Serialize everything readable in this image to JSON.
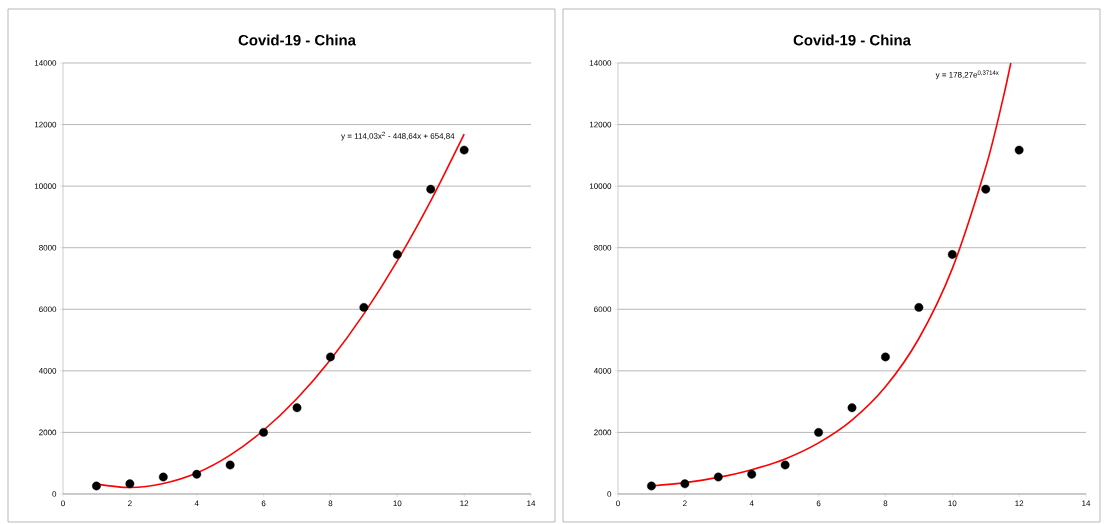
{
  "chart_data": [
    {
      "type": "scatter",
      "title": "Covid-19 - China",
      "xlim": [
        0,
        14
      ],
      "xticks": [
        0,
        2,
        4,
        6,
        8,
        10,
        12,
        14
      ],
      "ylim": [
        0,
        14000
      ],
      "yticks": [
        0,
        2000,
        4000,
        6000,
        8000,
        10000,
        12000,
        14000
      ],
      "grid": "y",
      "annotations": [
        "y = 114,03x$^{2}$ - 448,64x + 654,84"
      ],
      "series": [
        {
          "color": "#000000",
          "marker": "circle",
          "x": [
            1,
            2,
            3,
            4,
            5,
            6,
            7,
            8,
            9,
            10,
            11,
            12
          ],
          "values": [
            260,
            330,
            550,
            640,
            940,
            2000,
            2800,
            4450,
            6060,
            7780,
            9900,
            11170
          ]
        },
        {
          "type": "line",
          "color": "#ff0000",
          "marker": "none",
          "x": [
            1,
            2,
            3,
            4,
            5,
            6,
            7,
            8,
            9,
            10,
            11,
            12
          ],
          "values": [
            320,
            210,
            340,
            680,
            1260,
            2070,
            3100,
            4360,
            5850,
            7570,
            9520,
            11690
          ]
        }
      ]
    },
    {
      "type": "scatter",
      "title": "Covid-19 - China",
      "xlim": [
        0,
        14
      ],
      "xticks": [
        0,
        2,
        4,
        6,
        8,
        10,
        12,
        14
      ],
      "ylim": [
        0,
        14000
      ],
      "yticks": [
        0,
        2000,
        4000,
        6000,
        8000,
        10000,
        12000,
        14000
      ],
      "grid": "y",
      "annotations": [
        "y = 178,27e$^{0,3714x}$"
      ],
      "series": [
        {
          "color": "#000000",
          "marker": "circle",
          "x": [
            1,
            2,
            3,
            4,
            5,
            6,
            7,
            8,
            9,
            10,
            11,
            12
          ],
          "values": [
            260,
            330,
            550,
            640,
            940,
            2000,
            2800,
            4450,
            6060,
            7780,
            9900,
            11170
          ]
        },
        {
          "type": "line",
          "color": "#ff0000",
          "marker": "none",
          "x": [
            1,
            2,
            3,
            4,
            5,
            6,
            7,
            8,
            9,
            10,
            11,
            11.5,
            11.75
          ],
          "values": [
            260,
            370,
            540,
            790,
            1140,
            1660,
            2400,
            3480,
            5050,
            7320,
            10610,
            12760,
            14000
          ]
        }
      ]
    }
  ]
}
